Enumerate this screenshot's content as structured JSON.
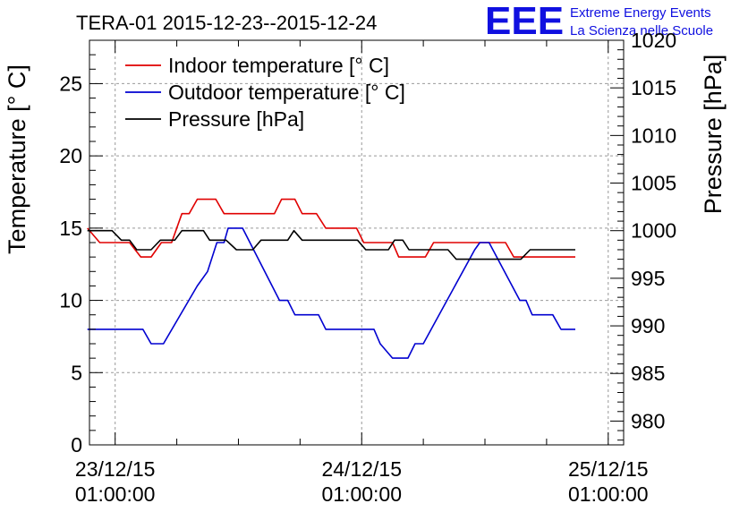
{
  "chart_data": {
    "type": "line",
    "title": "TERA-01 2015-12-23--2015-12-24",
    "logo": {
      "text": "EEE",
      "line1": "Extreme Energy Events",
      "line2": "La Scienza nelle Scuole",
      "color": "#1010e0"
    },
    "ylabel_left": "Temperature [° C]",
    "ylabel_right": "Pressure [hPa]",
    "grid": true,
    "legend_position": "top-left",
    "x_range_hours": [
      -2.5,
      49.5
    ],
    "y_left_range": [
      0,
      28
    ],
    "y_right_range": [
      977.5,
      1020
    ],
    "x_ticks": [
      {
        "hour": 0,
        "date": "23/12/15",
        "time": "01:00:00"
      },
      {
        "hour": 24,
        "date": "24/12/15",
        "time": "01:00:00"
      },
      {
        "hour": 48,
        "date": "25/12/15",
        "time": "01:00:00"
      }
    ],
    "y_left_ticks": [
      0,
      5,
      10,
      15,
      20,
      25
    ],
    "y_right_ticks": [
      980,
      985,
      990,
      995,
      1000,
      1005,
      1010,
      1015,
      1020
    ],
    "series": [
      {
        "name": "Indoor temperature [° C]",
        "color": "#e00000",
        "axis": "left",
        "points": [
          [
            -2.7,
            15
          ],
          [
            -1.5,
            14
          ],
          [
            1.4,
            14
          ],
          [
            2.5,
            13
          ],
          [
            3.5,
            13
          ],
          [
            4.5,
            14
          ],
          [
            5.5,
            14
          ],
          [
            6.5,
            16
          ],
          [
            7.2,
            16
          ],
          [
            8,
            17
          ],
          [
            9.8,
            17
          ],
          [
            10.6,
            16
          ],
          [
            15.5,
            16
          ],
          [
            16.2,
            17
          ],
          [
            17.5,
            17
          ],
          [
            18.2,
            16
          ],
          [
            19.6,
            16
          ],
          [
            20.5,
            15
          ],
          [
            23.5,
            15
          ],
          [
            24.2,
            14
          ],
          [
            27,
            14
          ],
          [
            27.6,
            13
          ],
          [
            30.2,
            13
          ],
          [
            31,
            14
          ],
          [
            38,
            14
          ],
          [
            38.8,
            13
          ],
          [
            44.8,
            13
          ]
        ]
      },
      {
        "name": "Outdoor temperature [° C]",
        "color": "#0000d0",
        "axis": "left",
        "points": [
          [
            -2.7,
            8
          ],
          [
            2.7,
            8
          ],
          [
            3.5,
            7
          ],
          [
            4.7,
            7
          ],
          [
            8,
            11
          ],
          [
            9,
            12
          ],
          [
            9.9,
            14
          ],
          [
            10.6,
            14
          ],
          [
            11,
            15
          ],
          [
            12.4,
            15
          ],
          [
            16,
            10
          ],
          [
            16.8,
            10
          ],
          [
            17.5,
            9
          ],
          [
            19.8,
            9
          ],
          [
            20.5,
            8
          ],
          [
            25.2,
            8
          ],
          [
            25.8,
            7
          ],
          [
            27,
            6
          ],
          [
            28.5,
            6
          ],
          [
            29.2,
            7
          ],
          [
            30,
            7
          ],
          [
            35,
            13.5
          ],
          [
            35.5,
            14
          ],
          [
            36.4,
            14
          ],
          [
            39.4,
            10
          ],
          [
            40,
            10
          ],
          [
            40.6,
            9
          ],
          [
            42.6,
            9
          ],
          [
            43.4,
            8
          ],
          [
            44.8,
            8
          ]
        ]
      },
      {
        "name": "Pressure [hPa]",
        "color": "#000000",
        "axis": "right",
        "points": [
          [
            -2.7,
            1000
          ],
          [
            -0.3,
            1000
          ],
          [
            0.6,
            999
          ],
          [
            1.4,
            999
          ],
          [
            2.1,
            998
          ],
          [
            3.5,
            998
          ],
          [
            4.4,
            999
          ],
          [
            5.8,
            999
          ],
          [
            6.5,
            1000
          ],
          [
            8.6,
            1000
          ],
          [
            9.2,
            999
          ],
          [
            10.8,
            999
          ],
          [
            11.8,
            998
          ],
          [
            13.4,
            998
          ],
          [
            14.2,
            999
          ],
          [
            16.8,
            999
          ],
          [
            17.4,
            1000
          ],
          [
            18.2,
            999
          ],
          [
            23.6,
            999
          ],
          [
            24.4,
            998
          ],
          [
            26.6,
            998
          ],
          [
            27.2,
            999
          ],
          [
            28,
            999
          ],
          [
            28.6,
            998
          ],
          [
            32.4,
            998
          ],
          [
            33.2,
            997
          ],
          [
            39.5,
            997
          ],
          [
            40.4,
            998
          ],
          [
            44.8,
            998
          ]
        ]
      }
    ]
  }
}
